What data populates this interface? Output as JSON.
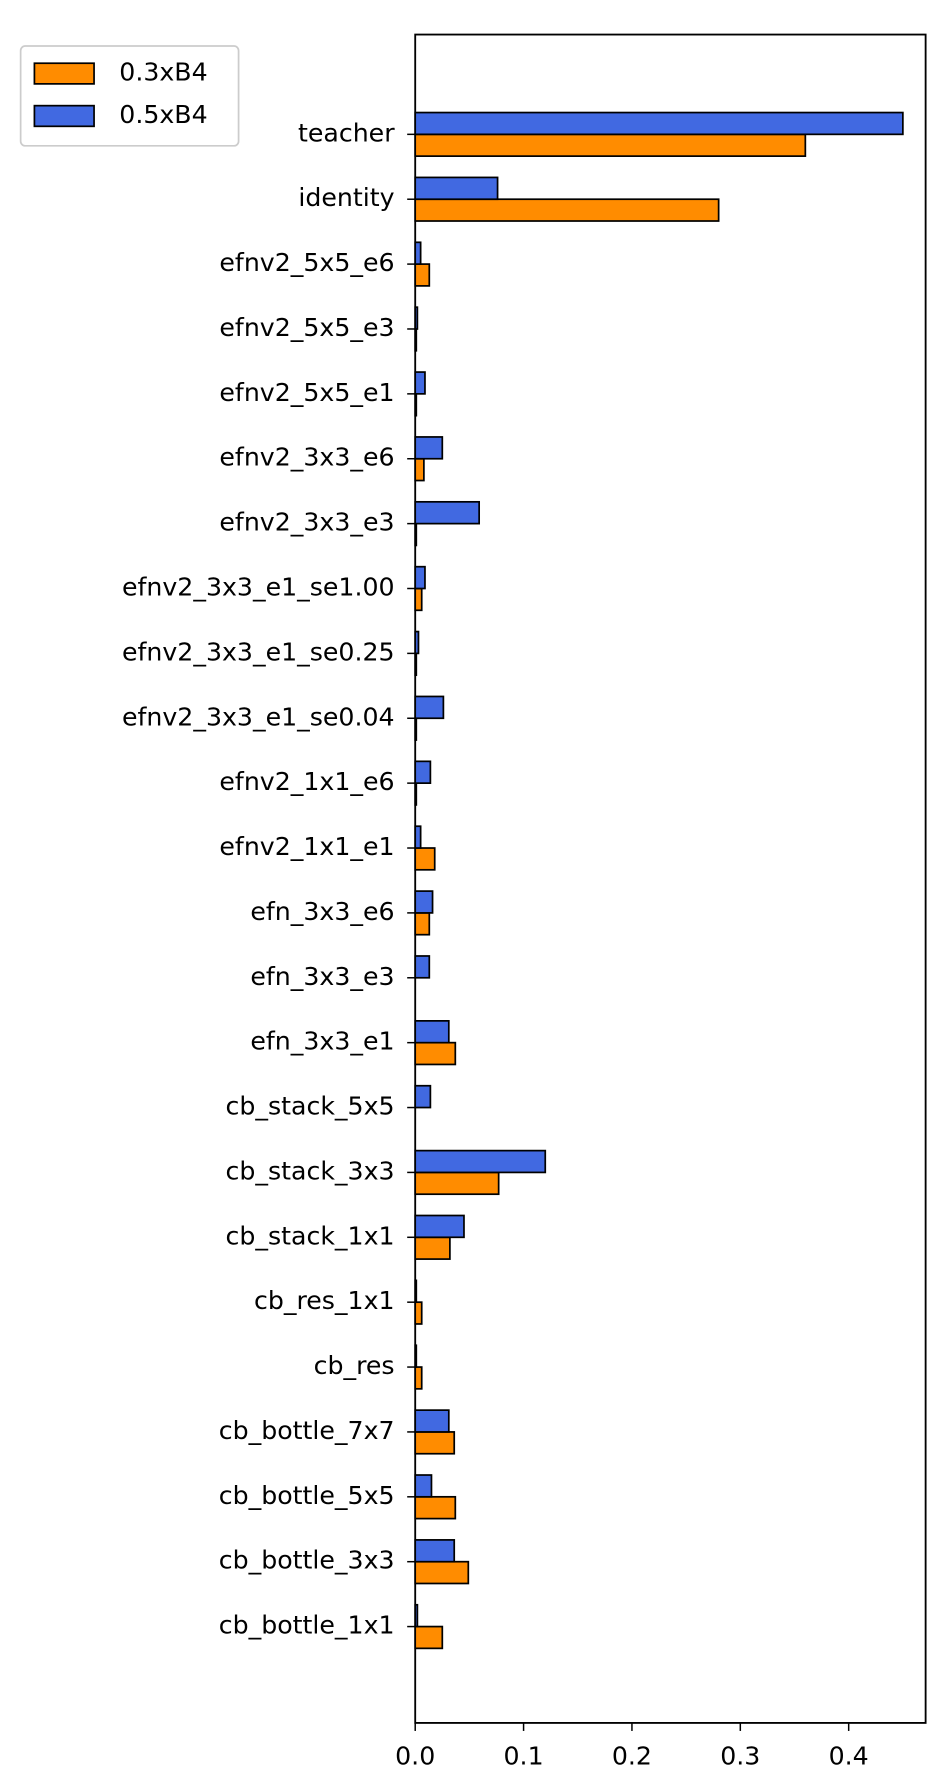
{
  "chart_data": {
    "type": "barh",
    "categories": [
      "teacher",
      "identity",
      "efnv2_5x5_e6",
      "efnv2_5x5_e3",
      "efnv2_5x5_e1",
      "efnv2_3x3_e6",
      "efnv2_3x3_e3",
      "efnv2_3x3_e1_se1.00",
      "efnv2_3x3_e1_se0.25",
      "efnv2_3x3_e1_se0.04",
      "efnv2_1x1_e6",
      "efnv2_1x1_e1",
      "efn_3x3_e6",
      "efn_3x3_e3",
      "efn_3x3_e1",
      "cb_stack_5x5",
      "cb_stack_3x3",
      "cb_stack_1x1",
      "cb_res_1x1",
      "cb_res",
      "cb_bottle_7x7",
      "cb_bottle_5x5",
      "cb_bottle_3x3",
      "cb_bottle_1x1"
    ],
    "series": [
      {
        "name": "0.3xB4",
        "color": "#ff8c00",
        "values": [
          0.36,
          0.28,
          0.013,
          0.001,
          0.001,
          0.008,
          0.001,
          0.006,
          0.001,
          0.001,
          0.001,
          0.018,
          0.013,
          0,
          0.037,
          0,
          0.077,
          0.032,
          0.006,
          0.006,
          0.036,
          0.037,
          0.049,
          0.025
        ]
      },
      {
        "name": "0.5xB4",
        "color": "#4169e1",
        "values": [
          0.45,
          0.076,
          0.005,
          0.002,
          0.009,
          0.025,
          0.059,
          0.009,
          0.003,
          0.026,
          0.014,
          0.005,
          0.016,
          0.013,
          0.031,
          0.014,
          0.12,
          0.045,
          0.001,
          0.001,
          0.031,
          0.015,
          0.036,
          0.002
        ]
      }
    ],
    "xlim": [
      0,
      0.471
    ],
    "xticks": [
      {
        "value": 0,
        "label": "0.0"
      },
      0.1,
      0.2,
      0.3,
      0.4
    ],
    "legend": "upper left"
  }
}
